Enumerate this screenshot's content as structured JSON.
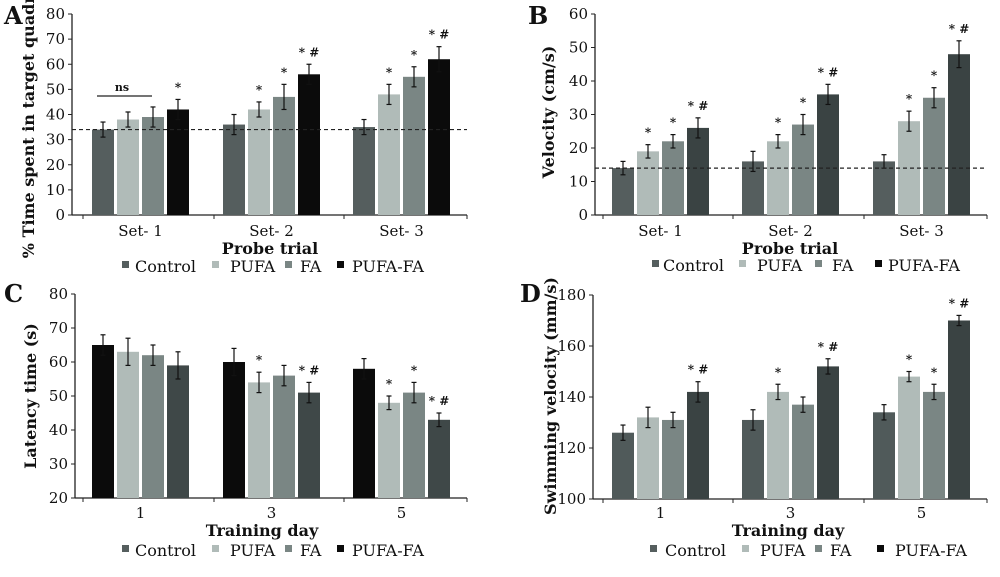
{
  "chart_data": [
    {
      "panel": "A",
      "type": "bar",
      "categories": [
        "Set- 1",
        "Set- 2",
        "Set- 3"
      ],
      "xlabel": "Probe trial",
      "ylabel": "% Time spent in target quadrant",
      "ylim": [
        0,
        80
      ],
      "yticks": [
        0,
        10,
        20,
        30,
        40,
        50,
        60,
        70,
        80
      ],
      "reference_line": 34,
      "colors": [
        "#555e5e",
        "#b0bbb8",
        "#7a8684",
        "#0b0b0b"
      ],
      "series": [
        {
          "name": "Control",
          "values": [
            34,
            36,
            35
          ],
          "errors": [
            3,
            4,
            3
          ],
          "annotations": [
            "",
            "",
            ""
          ]
        },
        {
          "name": "PUFA",
          "values": [
            38,
            42,
            48
          ],
          "errors": [
            3,
            3,
            4
          ],
          "annotations": [
            "",
            "*",
            "*"
          ]
        },
        {
          "name": "FA",
          "values": [
            39,
            47,
            55
          ],
          "errors": [
            4,
            5,
            4
          ],
          "annotations": [
            "",
            "*",
            "*"
          ]
        },
        {
          "name": "PUFA-FA",
          "values": [
            42,
            56,
            62
          ],
          "errors": [
            4,
            4,
            5
          ],
          "annotations": [
            "*",
            "* #",
            "* #"
          ]
        }
      ],
      "ns_label": "ns",
      "legend": "bottom"
    },
    {
      "panel": "B",
      "type": "bar",
      "categories": [
        "Set- 1",
        "Set- 2",
        "Set- 3"
      ],
      "xlabel": "Probe trial",
      "ylabel": "Velocity (cm/s)",
      "ylim": [
        0,
        60
      ],
      "yticks": [
        0,
        10,
        20,
        30,
        40,
        50,
        60
      ],
      "reference_line": 14,
      "colors": [
        "#555e5e",
        "#b0bbb8",
        "#7a8684",
        "#3a4343"
      ],
      "series": [
        {
          "name": "Control",
          "values": [
            14,
            16,
            16
          ],
          "errors": [
            2,
            3,
            2
          ],
          "annotations": [
            "",
            "",
            ""
          ]
        },
        {
          "name": "PUFA",
          "values": [
            19,
            22,
            28
          ],
          "errors": [
            2,
            2,
            3
          ],
          "annotations": [
            "*",
            "*",
            "*"
          ]
        },
        {
          "name": "FA",
          "values": [
            22,
            27,
            35
          ],
          "errors": [
            2,
            3,
            3
          ],
          "annotations": [
            "*",
            "*",
            "*"
          ]
        },
        {
          "name": "PUFA-FA",
          "values": [
            26,
            36,
            48
          ],
          "errors": [
            3,
            3,
            4
          ],
          "annotations": [
            "* #",
            "* #",
            "* #"
          ]
        }
      ],
      "legend": "bottom"
    },
    {
      "panel": "C",
      "type": "bar",
      "categories": [
        "1",
        "3",
        "5"
      ],
      "xlabel": "Training day",
      "ylabel": "Latency time (s)",
      "ylim": [
        20,
        80
      ],
      "yticks": [
        20,
        30,
        40,
        50,
        60,
        70,
        80
      ],
      "colors": [
        "#0b0b0b",
        "#b0bbb8",
        "#7a8684",
        "#3f4848"
      ],
      "series": [
        {
          "name": "Control",
          "values": [
            65,
            60,
            58
          ],
          "errors": [
            3,
            4,
            3
          ],
          "annotations": [
            "",
            "",
            ""
          ]
        },
        {
          "name": "PUFA",
          "values": [
            63,
            54,
            48
          ],
          "errors": [
            4,
            3,
            2
          ],
          "annotations": [
            "",
            "*",
            "*"
          ]
        },
        {
          "name": "FA",
          "values": [
            62,
            56,
            51
          ],
          "errors": [
            3,
            3,
            3
          ],
          "annotations": [
            "",
            "",
            "*"
          ]
        },
        {
          "name": "PUFA-FA",
          "values": [
            59,
            51,
            43
          ],
          "errors": [
            4,
            3,
            2
          ],
          "annotations": [
            "",
            "* #",
            "* #"
          ]
        }
      ],
      "legend": "bottom"
    },
    {
      "panel": "D",
      "type": "bar",
      "categories": [
        "1",
        "3",
        "5"
      ],
      "xlabel": "Training day",
      "ylabel": "Swimming velocity (mm/s)",
      "ylim": [
        100,
        180
      ],
      "yticks": [
        100,
        120,
        140,
        160,
        180
      ],
      "colors": [
        "#505a5a",
        "#b0bbb8",
        "#7a8684",
        "#3a4343"
      ],
      "series": [
        {
          "name": "Control",
          "values": [
            126,
            131,
            134
          ],
          "errors": [
            3,
            4,
            3
          ],
          "annotations": [
            "",
            "",
            ""
          ]
        },
        {
          "name": "PUFA",
          "values": [
            132,
            142,
            148
          ],
          "errors": [
            4,
            3,
            2
          ],
          "annotations": [
            "",
            "*",
            "*"
          ]
        },
        {
          "name": "FA",
          "values": [
            131,
            137,
            142
          ],
          "errors": [
            3,
            3,
            3
          ],
          "annotations": [
            "",
            "",
            "*"
          ]
        },
        {
          "name": "PUFA-FA",
          "values": [
            142,
            152,
            170
          ],
          "errors": [
            4,
            3,
            2
          ],
          "annotations": [
            "* #",
            "* #",
            "* #"
          ]
        }
      ],
      "legend": "bottom"
    }
  ],
  "legend_colors": [
    "#555e5e",
    "#b0bbb8",
    "#7a8684",
    "#0b0b0b"
  ]
}
